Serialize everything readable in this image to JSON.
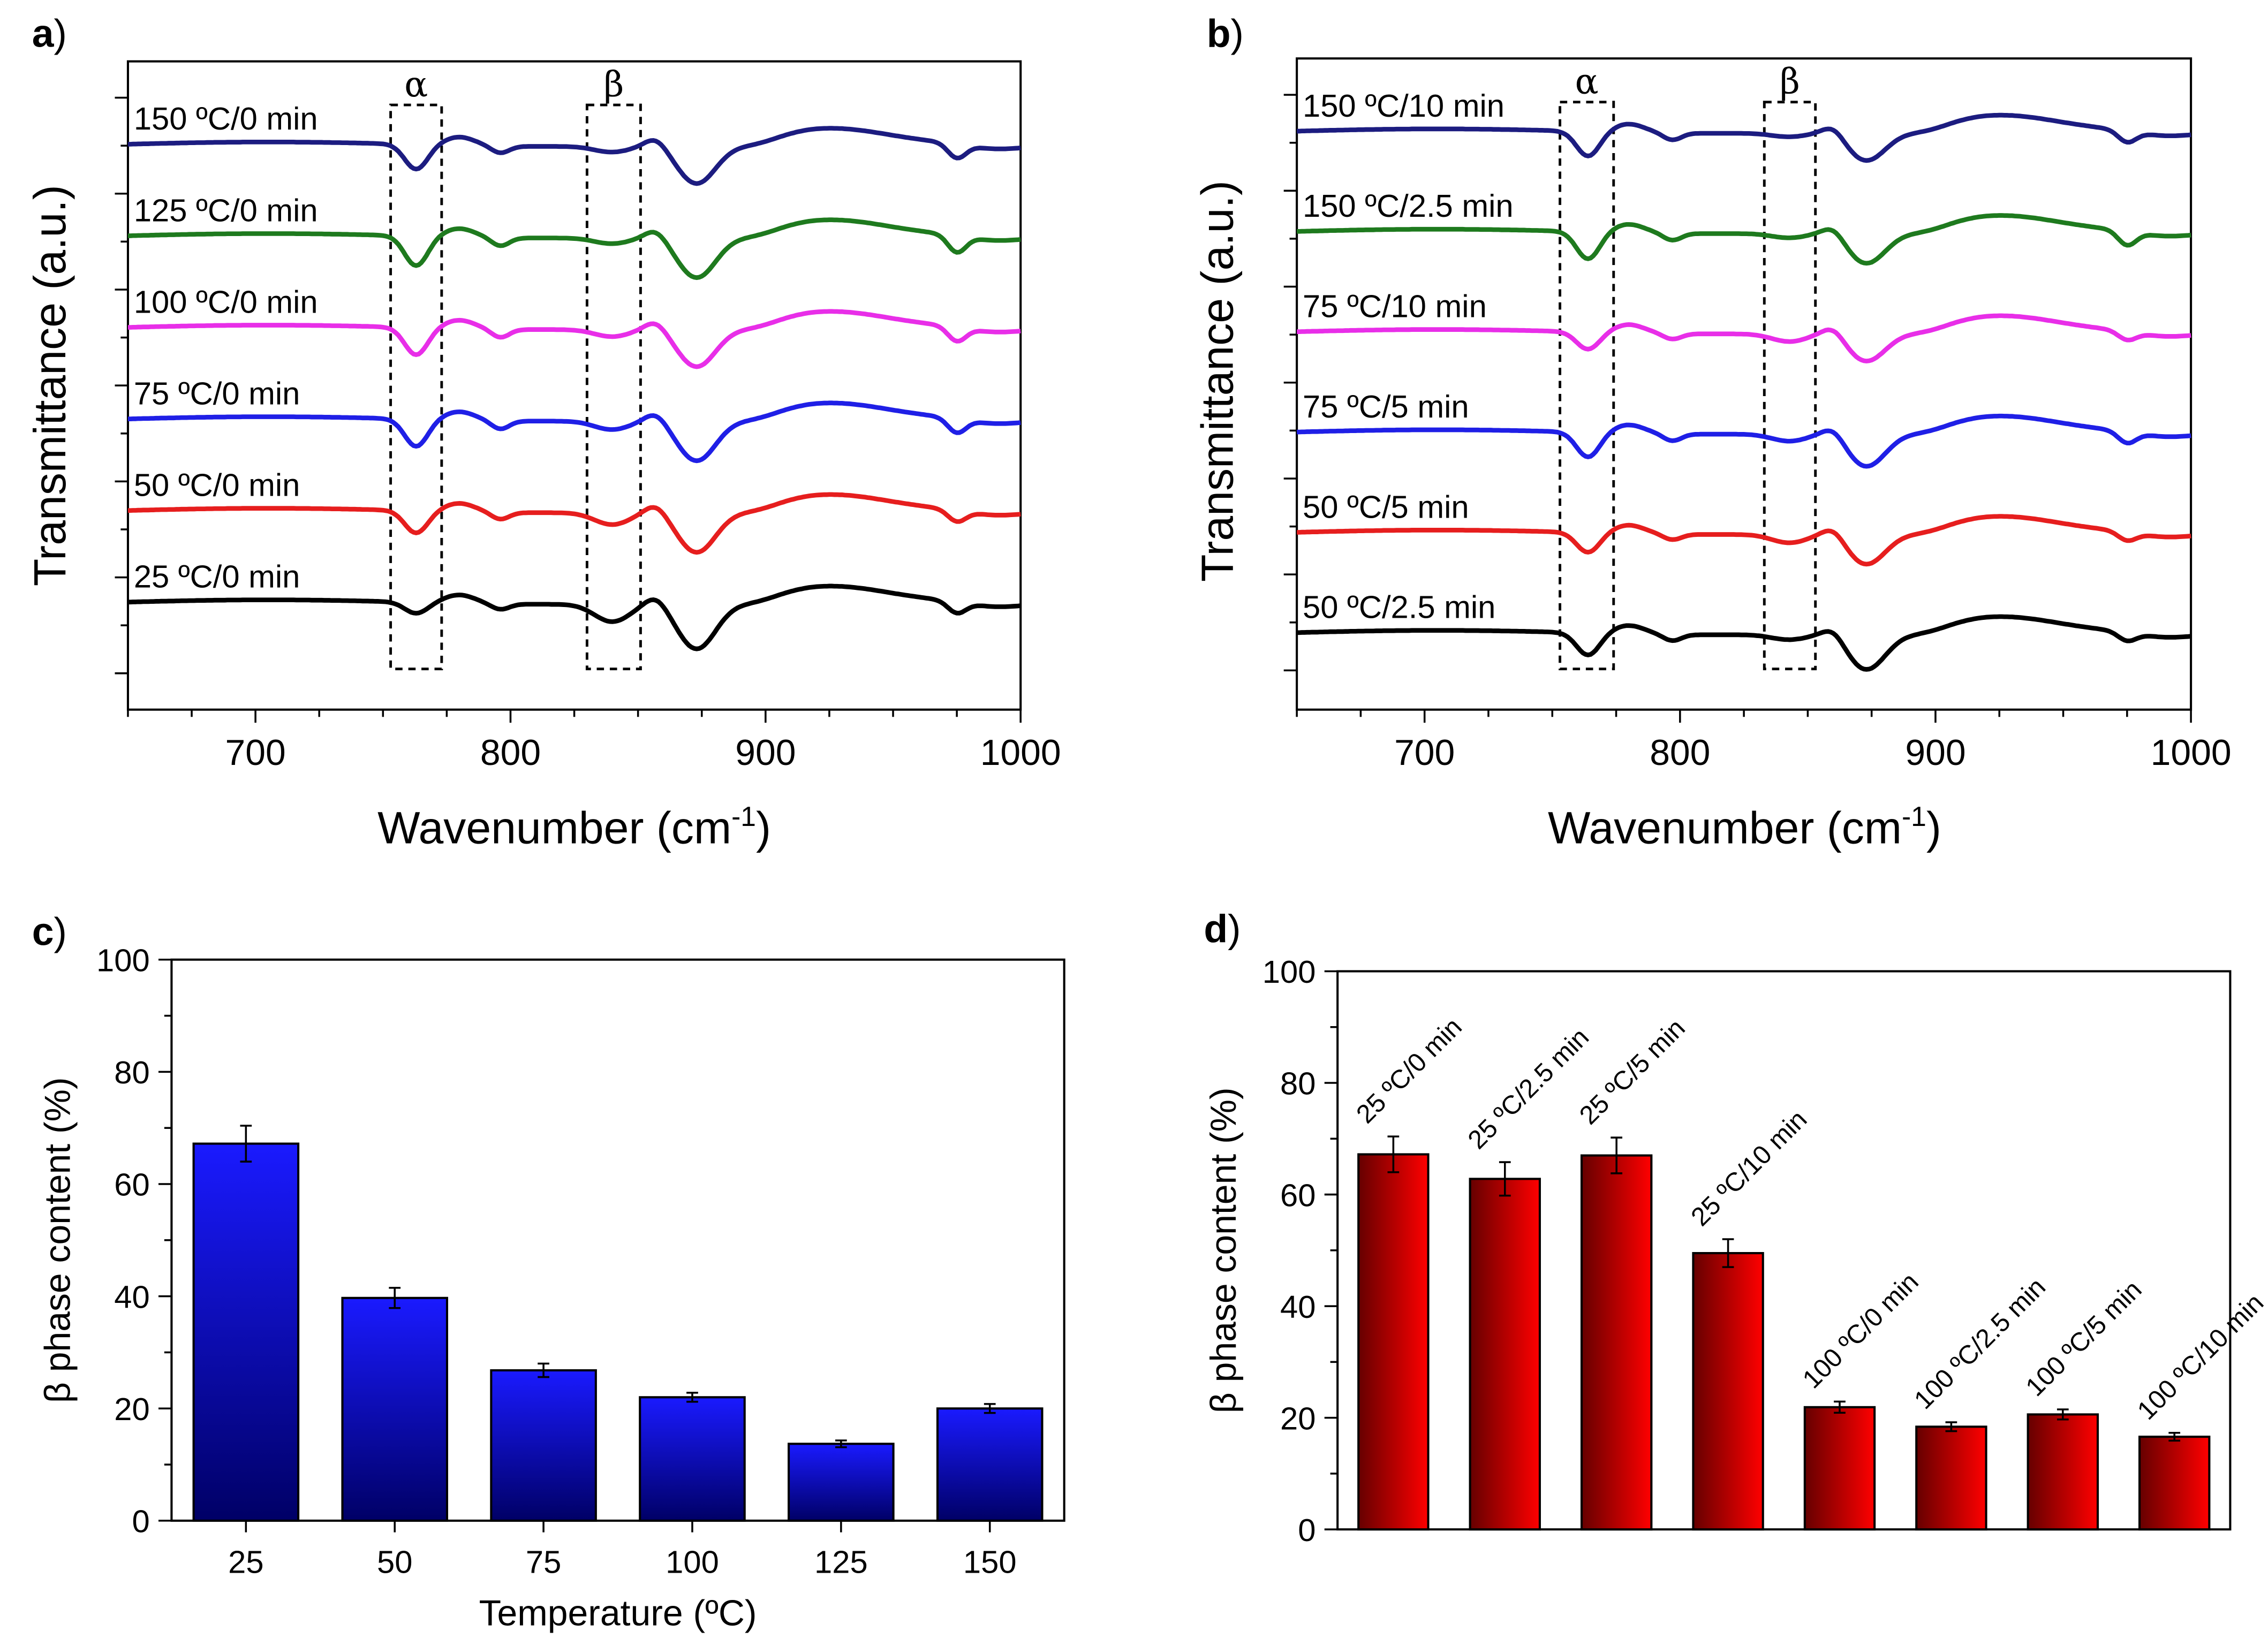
{
  "chart_data": [
    {
      "panel_label": "a",
      "type": "line",
      "xlabel": "Wavenumber (cm",
      "xlabel_sup": "-1",
      "xlabel_close": ")",
      "ylabel": "Transmittance (a.u.)",
      "xlim": [
        650,
        1000
      ],
      "xticks": [
        "700",
        "800",
        "900",
        "1000"
      ],
      "xtick_values": [
        700,
        800,
        900,
        1000
      ],
      "boxes": [
        {
          "label": "α",
          "x_range": [
            753,
            773
          ]
        },
        {
          "label": "β",
          "x_range": [
            830,
            851
          ]
        }
      ],
      "peaks_alpha": [
        763,
        796
      ],
      "peaks_beta": [
        840,
        873
      ],
      "series": [
        {
          "name": "150 ºC/0 min",
          "color": "#1c1c80",
          "a763": 1.0,
          "a796": 0.5,
          "a840": 0.45,
          "a873": 1.6,
          "a975": 0.5
        },
        {
          "name": "125 ºC/0 min",
          "color": "#1e7a1e",
          "a763": 1.2,
          "a796": 0.6,
          "a840": 0.45,
          "a873": 1.7,
          "a975": 0.6
        },
        {
          "name": "100 ºC/0 min",
          "color": "#e82ee8",
          "a763": 1.1,
          "a796": 0.6,
          "a840": 0.55,
          "a873": 1.6,
          "a975": 0.5
        },
        {
          "name": "75 ºC/0 min",
          "color": "#1f1fe6",
          "a763": 1.1,
          "a796": 0.6,
          "a840": 0.65,
          "a873": 1.7,
          "a975": 0.5
        },
        {
          "name": "50 ºC/0 min",
          "color": "#e61e1e",
          "a763": 0.9,
          "a796": 0.5,
          "a840": 0.9,
          "a873": 1.7,
          "a975": 0.4
        },
        {
          "name": "25 ºC/0 min",
          "color": "#000000",
          "a763": 0.45,
          "a796": 0.4,
          "a840": 1.3,
          "a873": 1.9,
          "a975": 0.4
        }
      ]
    },
    {
      "panel_label": "b",
      "type": "line",
      "xlabel": "Wavenumber (cm",
      "xlabel_sup": "-1",
      "xlabel_close": ")",
      "ylabel": "Transmittance (a.u.)",
      "xlim": [
        650,
        1000
      ],
      "xticks": [
        "700",
        "800",
        "900",
        "1000"
      ],
      "xtick_values": [
        700,
        800,
        900,
        1000
      ],
      "boxes": [
        {
          "label": "α",
          "x_range": [
            753,
            774
          ]
        },
        {
          "label": "β",
          "x_range": [
            833,
            853
          ]
        }
      ],
      "peaks_alpha": [
        764,
        797
      ],
      "peaks_beta": [
        843,
        873
      ],
      "series": [
        {
          "name": "150 ºC/10 min",
          "color": "#1c1c80",
          "a763": 1.0,
          "a796": 0.5,
          "a840": 0.3,
          "a873": 1.2,
          "a975": 0.4
        },
        {
          "name": "150 ºC/2.5 min",
          "color": "#1e7a1e",
          "a763": 1.1,
          "a796": 0.5,
          "a840": 0.35,
          "a873": 1.3,
          "a975": 0.5
        },
        {
          "name": "75 ºC/10 min",
          "color": "#e82ee8",
          "a763": 0.7,
          "a796": 0.4,
          "a840": 0.6,
          "a873": 1.2,
          "a975": 0.3
        },
        {
          "name": "75 ºC/5 min",
          "color": "#1f1fe6",
          "a763": 1.0,
          "a796": 0.5,
          "a840": 0.55,
          "a873": 1.4,
          "a975": 0.4
        },
        {
          "name": "50 ºC/5 min",
          "color": "#e61e1e",
          "a763": 0.8,
          "a796": 0.4,
          "a840": 0.65,
          "a873": 1.3,
          "a975": 0.3
        },
        {
          "name": "50 ºC/2.5 min",
          "color": "#000000",
          "a763": 0.9,
          "a796": 0.45,
          "a840": 0.4,
          "a873": 1.5,
          "a975": 0.3
        }
      ]
    },
    {
      "panel_label": "c",
      "type": "bar",
      "xlabel": "Temperature (ºC)",
      "ylabel": "β phase content (%)",
      "ylim": [
        0,
        100
      ],
      "yticks": [
        "0",
        "20",
        "40",
        "60",
        "80",
        "100"
      ],
      "ytick_values": [
        0,
        20,
        40,
        60,
        80,
        100
      ],
      "categories": [
        "25",
        "50",
        "75",
        "100",
        "125",
        "150"
      ],
      "values": [
        67.2,
        39.7,
        26.8,
        22.0,
        13.7,
        20.0
      ],
      "errors": [
        3.2,
        1.8,
        1.2,
        0.8,
        0.6,
        0.8
      ],
      "color_top": "#1a1aff",
      "color_bottom": "#000066"
    },
    {
      "panel_label": "d",
      "type": "bar",
      "xlabel": "",
      "ylabel": "β phase content (%)",
      "ylim": [
        0,
        100
      ],
      "yticks": [
        "0",
        "20",
        "40",
        "60",
        "80",
        "100"
      ],
      "ytick_values": [
        0,
        20,
        40,
        60,
        80,
        100
      ],
      "categories": [
        "25 ºC/0 min",
        "25 ºC/2.5 min",
        "25 ºC/5 min",
        "25 ºC/10 min",
        "100 ºC/0 min",
        "100 ºC/2.5 min",
        "100 ºC/5 min",
        "100 ºC/10 min"
      ],
      "values": [
        67.2,
        62.8,
        67.0,
        49.5,
        21.9,
        18.4,
        20.6,
        16.6
      ],
      "errors": [
        3.2,
        3.0,
        3.2,
        2.5,
        1.0,
        0.8,
        0.9,
        0.7
      ],
      "color_right": "#ff0000",
      "color_left": "#660000"
    }
  ]
}
